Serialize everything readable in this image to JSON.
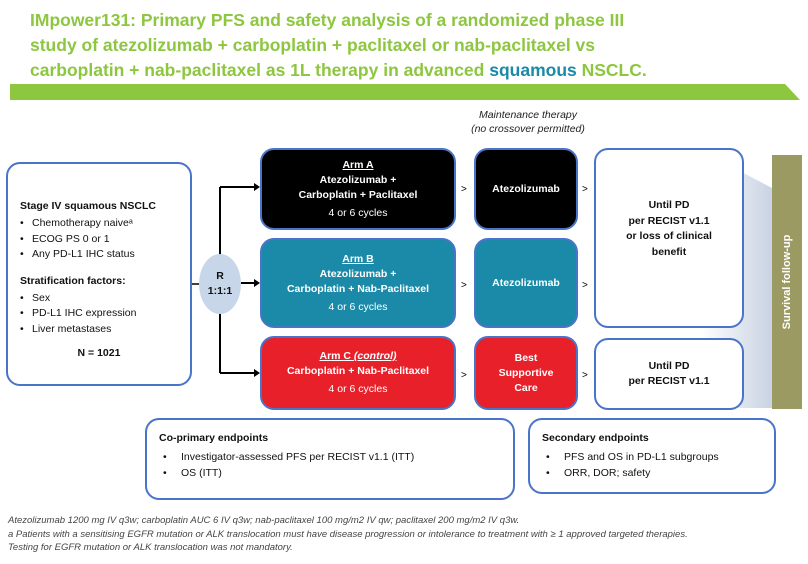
{
  "title": {
    "line1": "IMpower131: Primary PFS and safety analysis of a randomized phase III",
    "line2": "study of atezolizumab + carboplatin + paclitaxel or nab-paclitaxel vs",
    "line3_prefix": "carboplatin + nab-paclitaxel as 1L therapy in advanced ",
    "line3_highlight": "squamous",
    "line3_suffix": " NSCLC."
  },
  "maintenance": {
    "line1": "Maintenance therapy",
    "line2": "(no crossover permitted)"
  },
  "eligibility": {
    "heading": "Stage IV squamous NSCLC",
    "criteria": [
      "Chemotherapy naiveᵃ",
      "ECOG PS 0 or 1",
      "Any PD-L1 IHC status"
    ],
    "strat_heading": "Stratification factors:",
    "strat": [
      "Sex",
      "PD-L1 IHC expression",
      "Liver metastases"
    ],
    "n": "N = 1021"
  },
  "randomization": {
    "line1": "R",
    "line2": "1:1:1"
  },
  "arms": [
    {
      "name": "Arm A",
      "name_suffix": "",
      "line1": "Atezolizumab +",
      "line2": "Carboplatin + Paclitaxel",
      "cycles": "4 or 6 cycles",
      "maintenance": "Atezolizumab",
      "maintenance2": "",
      "maintenance3": ""
    },
    {
      "name": "Arm B",
      "name_suffix": "",
      "line1": "Atezolizumab +",
      "line2": "Carboplatin + Nab-Paclitaxel",
      "cycles": "4 or 6 cycles",
      "maintenance": "Atezolizumab",
      "maintenance2": "",
      "maintenance3": ""
    },
    {
      "name": "Arm C ",
      "name_suffix": "(control)",
      "line1": "Carboplatin + Nab-Paclitaxel",
      "line2": "",
      "cycles": "4 or 6 cycles",
      "maintenance": "Best",
      "maintenance2": "Supportive",
      "maintenance3": "Care"
    }
  ],
  "until_pd_ab": {
    "l1": "Until PD",
    "l2": "per RECIST v1.1",
    "l3": "or loss of clinical",
    "l4": "benefit"
  },
  "until_pd_c": {
    "l1": "Until PD",
    "l2": "per RECIST v1.1"
  },
  "survival": "Survival follow-up",
  "coprimary": {
    "heading": "Co-primary endpoints",
    "items": [
      "Investigator-assessed PFS per RECIST v1.1 (ITT)",
      "OS (ITT)"
    ]
  },
  "secondary": {
    "heading": "Secondary endpoints",
    "items": [
      "PFS and OS in PD-L1 subgroups",
      "ORR, DOR; safety"
    ]
  },
  "footnotes": [
    "Atezolizumab 1200 mg IV q3w; carboplatin AUC 6 IV q3w; nab-paclitaxel 100 mg/m2 IV qw; paclitaxel 200 mg/m2 IV q3w.",
    "a Patients with a sensitising EGFR mutation or ALK translocation must have disease progression or intolerance to treatment with ≥ 1 approved targeted therapies.",
    "Testing for EGFR mutation or ALK translocation was not mandatory."
  ],
  "colors": {
    "title": "#8dc63f",
    "highlight": "#1a8aa8",
    "arm_a": "#000000",
    "arm_b": "#1a8aa8",
    "arm_c": "#e8202a",
    "outline": "#4a74c9",
    "survival": "#9a9a62",
    "rand": "#c7d6e9"
  }
}
